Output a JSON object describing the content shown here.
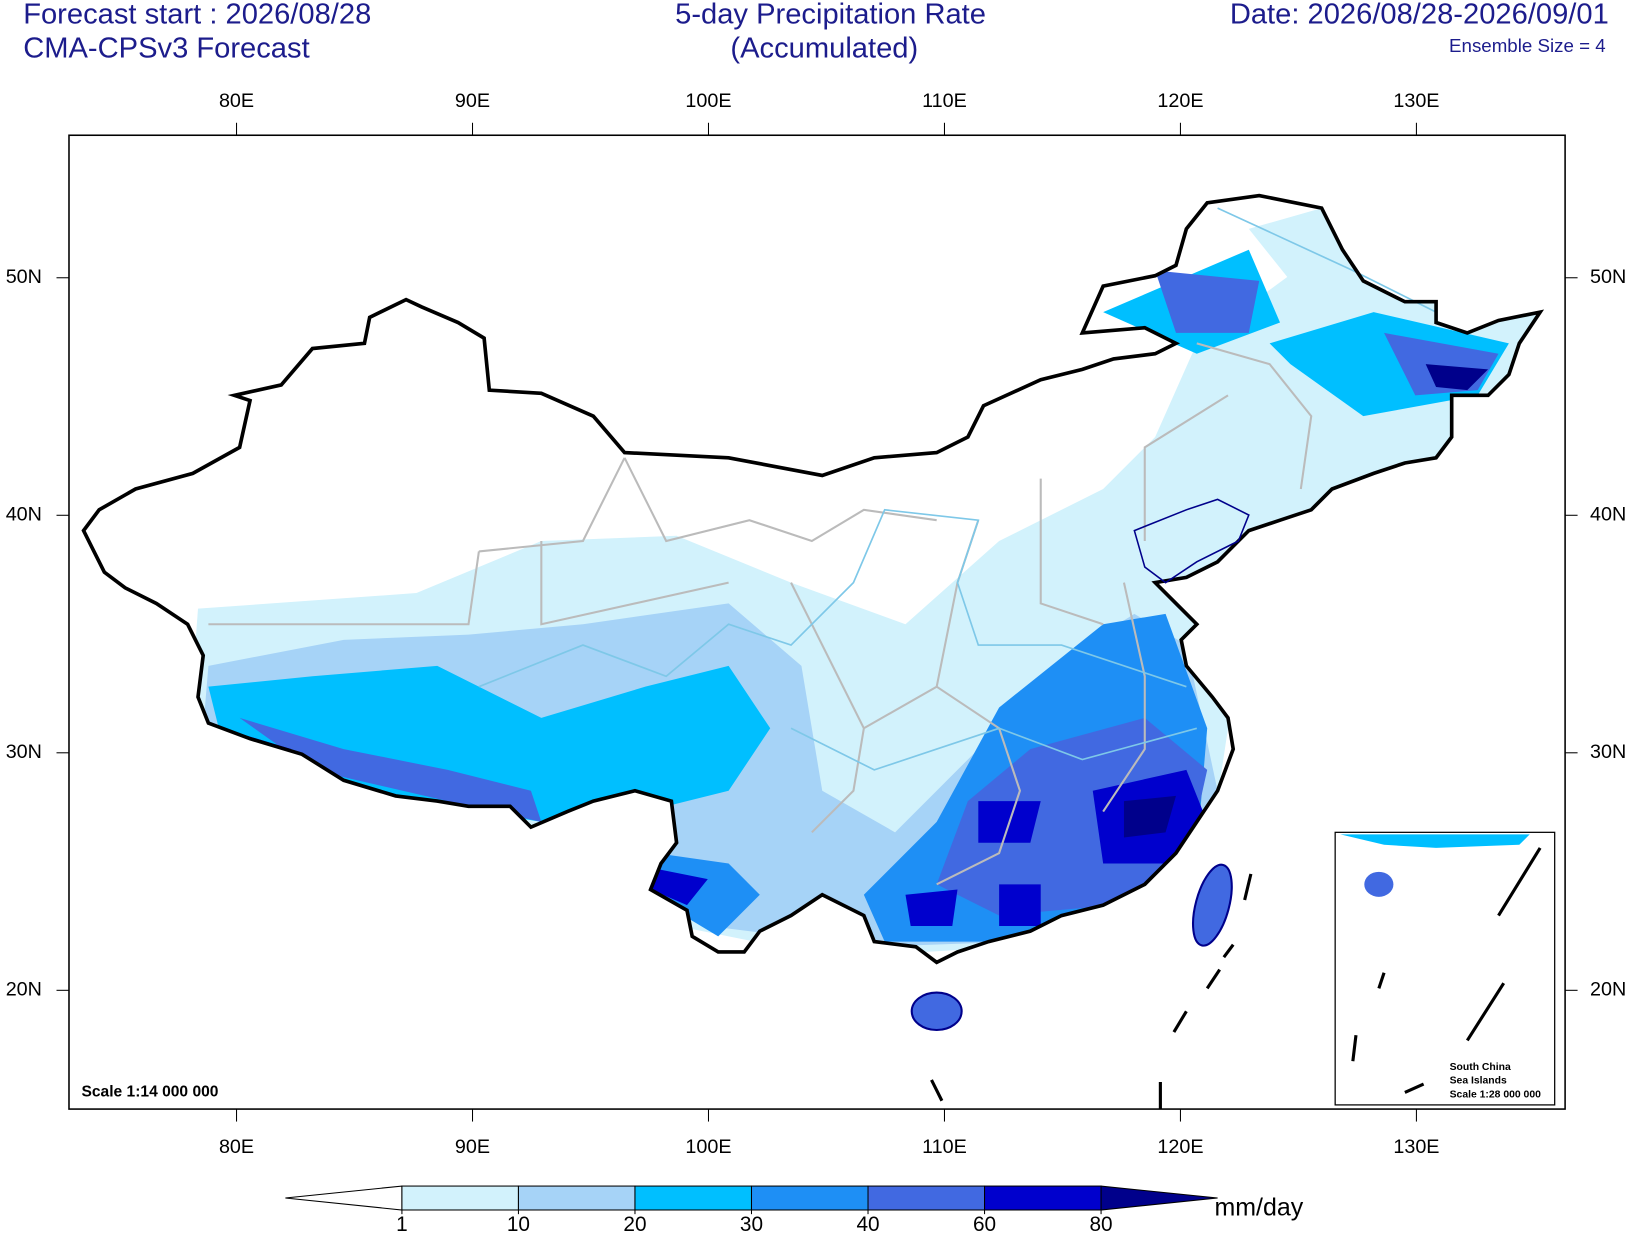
{
  "header": {
    "left": [
      "Forecast start : 2026/08/28",
      "CMA-CPSv3 Forecast"
    ],
    "title": [
      "5-day Precipitation Rate",
      "(Accumulated)"
    ],
    "right": [
      "Date: 2026/08/28-2026/09/01",
      "Ensemble Size = 4"
    ]
  },
  "map": {
    "xlim": [
      72.9,
      136.3
    ],
    "ylim": [
      15.0,
      56.0
    ],
    "xticks": [
      {
        "value": 80,
        "label": "80E"
      },
      {
        "value": 90,
        "label": "90E"
      },
      {
        "value": 100,
        "label": "100E"
      },
      {
        "value": 110,
        "label": "110E"
      },
      {
        "value": 120,
        "label": "120E"
      },
      {
        "value": 130,
        "label": "130E"
      }
    ],
    "yticks": [
      {
        "value": 20,
        "label": "20N"
      },
      {
        "value": 30,
        "label": "30N"
      },
      {
        "value": 40,
        "label": "40N"
      },
      {
        "value": 50,
        "label": "50N"
      }
    ],
    "scale": "Scale 1:14 000 000",
    "inset": [
      "South China",
      "Sea Islands",
      "Scale 1:28 000 000"
    ]
  },
  "colorbar": {
    "levels": [
      1,
      10,
      20,
      30,
      40,
      60,
      80
    ],
    "colors": [
      "#ffffff",
      "#d2f2fc",
      "#a6d3f7",
      "#00bfff",
      "#1e8ff5",
      "#4169e1",
      "#0000cd",
      "#00008b"
    ],
    "unit": "mm/day"
  }
}
